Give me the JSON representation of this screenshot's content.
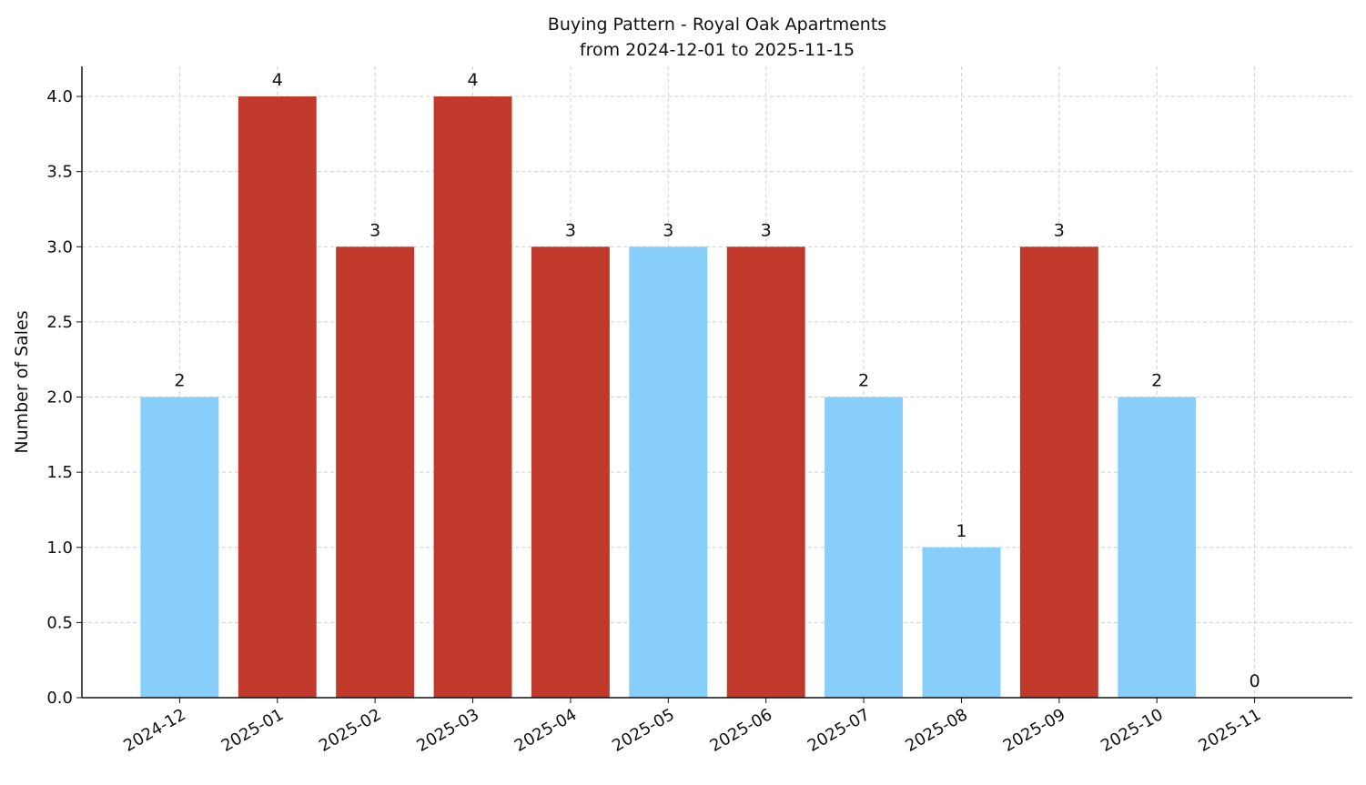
{
  "chart_data": {
    "type": "bar",
    "title": "Buying Pattern - Royal Oak Apartments",
    "subtitle": "from 2024-12-01 to 2025-11-15",
    "y_label": "Number of Sales",
    "categories": [
      "2024-12",
      "2025-01",
      "2025-02",
      "2025-03",
      "2025-04",
      "2025-05",
      "2025-06",
      "2025-07",
      "2025-08",
      "2025-09",
      "2025-10",
      "2025-11"
    ],
    "values": [
      2,
      4,
      3,
      4,
      3,
      3,
      3,
      2,
      1,
      3,
      2,
      0
    ],
    "colors": [
      "#87cefa",
      "#c0392b",
      "#c0392b",
      "#c0392b",
      "#c0392b",
      "#87cefa",
      "#c0392b",
      "#87cefa",
      "#87cefa",
      "#c0392b",
      "#87cefa",
      "#87cefa"
    ],
    "ylim": [
      0,
      4.2
    ],
    "yticks": [
      {
        "value": 0,
        "label": "0.0"
      },
      0.5,
      {
        "value": 1,
        "label": "1.0"
      },
      1.5,
      {
        "value": 2,
        "label": "2.0"
      },
      2.5,
      {
        "value": 3,
        "label": "3.0"
      },
      3.5,
      {
        "value": 4,
        "label": "4.0"
      }
    ],
    "grid": true
  }
}
